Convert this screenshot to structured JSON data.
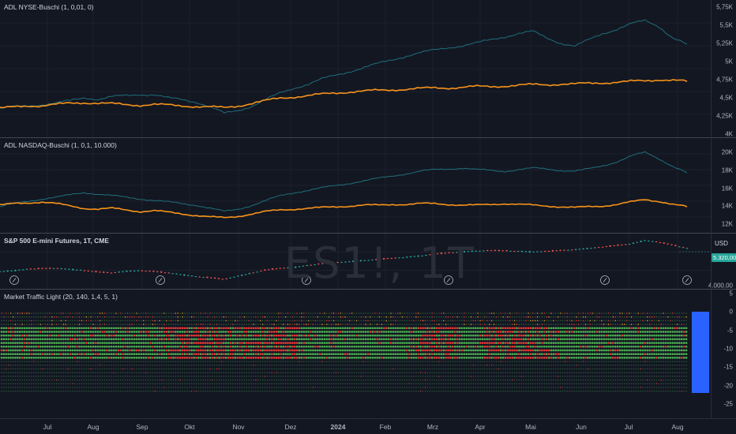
{
  "panes": {
    "adl_nyse": {
      "legend": "ADL NYSE-Buschi (1, 0,01, 0)",
      "y_ticks": [
        "5,75K",
        "5,5K",
        "5,25K",
        "5K",
        "4,75K",
        "4,5K",
        "4,25K",
        "4K"
      ]
    },
    "adl_nasdaq": {
      "legend": "ADL NASDAQ-Buschi (1, 0,1, 10.000)",
      "y_ticks": [
        "20K",
        "18K",
        "16K",
        "14K",
        "12K"
      ]
    },
    "price": {
      "legend": "S&P 500 E-mini Futures, 1T, CME",
      "watermark": "ES1!, 1T",
      "currency": "USD",
      "last_price": "5.320,00",
      "y_ticks": [
        "4.000,00"
      ]
    },
    "traffic_light": {
      "legend": "Market Traffic Light (20, 140, 1,4, 5, 1)",
      "y_ticks": [
        "5",
        "0",
        "-5",
        "-10",
        "-15",
        "-20",
        "-25"
      ]
    }
  },
  "x_axis": [
    "Jul",
    "Aug",
    "Sep",
    "Okt",
    "Nov",
    "Dez",
    "2024",
    "Feb",
    "Mrz",
    "Apr",
    "Mai",
    "Jun",
    "Jul",
    "Aug"
  ],
  "colors": {
    "background": "#131722",
    "teal_line": "#1f6f7a",
    "orange_line": "#f7931a",
    "up": "#26a69a",
    "down": "#ef5350",
    "light_green": "#4caf50",
    "light_red": "#e53935",
    "label_blue": "#2962ff"
  },
  "icons": {
    "event_marker": "lightning-icon"
  },
  "chart_data": [
    {
      "type": "line",
      "pane": "adl_nyse",
      "title": "ADL NYSE-Buschi (1, 0,01, 0)",
      "ylim": [
        4000,
        5800
      ],
      "series": [
        {
          "values": [
            4280,
            4300,
            4320,
            4340,
            4360,
            4400,
            4450,
            4420,
            4460,
            4480,
            4500,
            4490,
            4440,
            4420,
            4380,
            4300,
            4200,
            4250,
            4320,
            4420,
            4520,
            4600,
            4660,
            4740,
            4800,
            4860,
            4920,
            4980,
            5040,
            5100,
            5150,
            5190,
            5230,
            5260,
            5300,
            5350,
            5400,
            5450,
            5480,
            5380,
            5300,
            5250,
            5350,
            5450,
            5520,
            5600,
            5650,
            5560,
            5380,
            5280
          ]
        },
        {
          "values": [
            4280,
            4300,
            4320,
            4320,
            4340,
            4360,
            4370,
            4360,
            4350,
            4340,
            4330,
            4340,
            4330,
            4320,
            4310,
            4300,
            4290,
            4320,
            4360,
            4400,
            4440,
            4460,
            4480,
            4500,
            4520,
            4540,
            4550,
            4560,
            4570,
            4580,
            4590,
            4600,
            4600,
            4610,
            4620,
            4620,
            4630,
            4640,
            4650,
            4650,
            4660,
            4660,
            4670,
            4680,
            4690,
            4700,
            4710,
            4730,
            4720,
            4700
          ]
        }
      ]
    },
    {
      "type": "line",
      "pane": "adl_nasdaq",
      "title": "ADL NASDAQ-Buschi (1, 0,1, 10.000)",
      "ylim": [
        11500,
        21500
      ],
      "series": [
        {
          "values": [
            13800,
            14200,
            14500,
            14800,
            15000,
            15300,
            15600,
            15400,
            15200,
            15000,
            14800,
            14600,
            14400,
            14200,
            14000,
            13600,
            13200,
            13500,
            14000,
            14600,
            15200,
            15600,
            15900,
            16200,
            16500,
            16800,
            17100,
            17400,
            17700,
            18000,
            18300,
            18500,
            18600,
            18700,
            18500,
            18400,
            18300,
            18500,
            18700,
            18600,
            18400,
            18300,
            18600,
            19000,
            19500,
            20200,
            20700,
            19900,
            18900,
            18100
          ]
        },
        {
          "values": [
            14000,
            14200,
            14300,
            14400,
            14200,
            13900,
            13600,
            13500,
            13600,
            13400,
            13200,
            13300,
            13100,
            12900,
            12700,
            12500,
            12400,
            12600,
            12900,
            13200,
            13400,
            13500,
            13600,
            13700,
            13800,
            13900,
            14000,
            14000,
            14100,
            14100,
            14200,
            14200,
            14100,
            14000,
            14000,
            14100,
            14200,
            14100,
            14000,
            13900,
            13800,
            13700,
            13800,
            13900,
            14100,
            14400,
            14700,
            14500,
            14100,
            13800
          ]
        }
      ]
    },
    {
      "type": "line",
      "pane": "price",
      "title": "S&P 500 E-mini Futures, 1T, CME",
      "ylim": [
        4000,
        5700
      ],
      "series": [
        {
          "values": [
            4470,
            4500,
            4560,
            4580,
            4590,
            4550,
            4510,
            4450,
            4420,
            4480,
            4500,
            4470,
            4420,
            4350,
            4280,
            4240,
            4180,
            4300,
            4420,
            4530,
            4590,
            4620,
            4700,
            4760,
            4800,
            4840,
            4880,
            4920,
            4960,
            5000,
            5050,
            5120,
            5160,
            5200,
            5230,
            5250,
            5240,
            5220,
            5200,
            5220,
            5250,
            5280,
            5330,
            5380,
            5440,
            5500,
            5620,
            5560,
            5450,
            5330
          ]
        }
      ]
    }
  ]
}
